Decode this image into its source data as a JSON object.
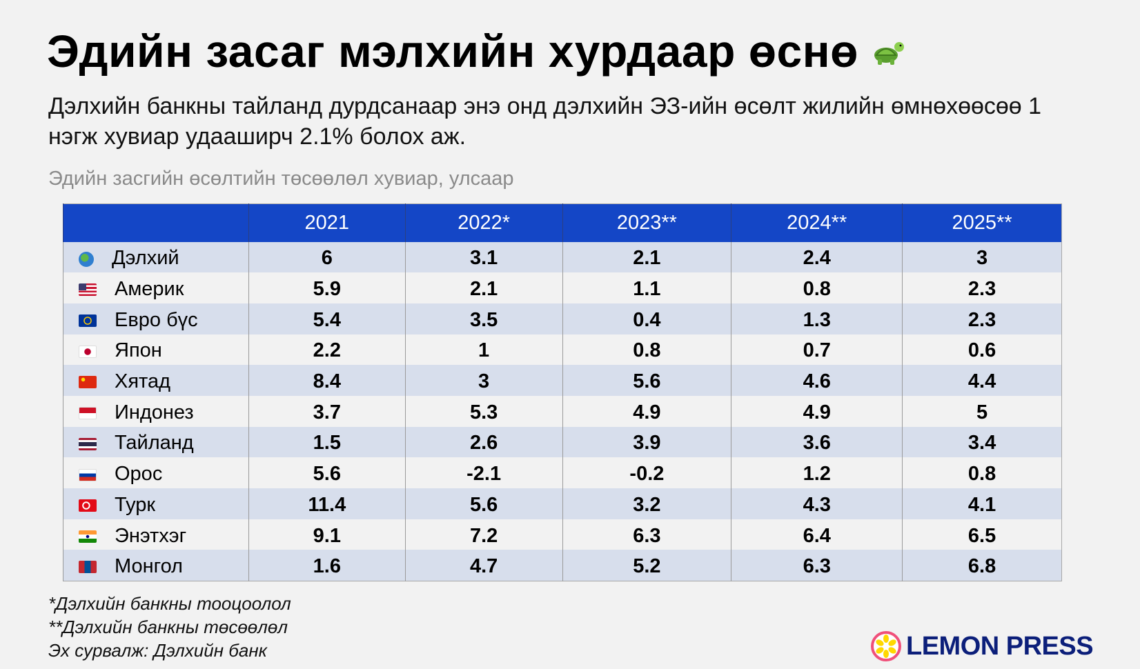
{
  "title": "Эдийн засаг мэлхийн хурдаар өснө",
  "title_icon": "turtle-icon",
  "subtitle": "Дэлхийн банкны тайланд дурдсанаар энэ онд дэлхийн ЭЗ-ийн өсөлт жилийн өмнөхөөсөө 1 нэгж хувиар удааширч 2.1% болох аж.",
  "caption": "Эдийн засгийн өсөлтийн төсөөлөл хувиар, улсаар",
  "colors": {
    "header": "#1446c6",
    "row_odd": "#d7deec",
    "row_even": "#f2f2f2",
    "logo": "#0c1f7a"
  },
  "chart_data": {
    "type": "table",
    "columns": [
      "",
      "2021",
      "2022*",
      "2023**",
      "2024**",
      "2025**"
    ],
    "rows": [
      {
        "icon": "globe-icon",
        "name": "Дэлхий",
        "values": [
          "6",
          "3.1",
          "2.1",
          "2.4",
          "3"
        ]
      },
      {
        "icon": "usa-flag-icon",
        "name": "Америк",
        "values": [
          "5.9",
          "2.1",
          "1.1",
          "0.8",
          "2.3"
        ]
      },
      {
        "icon": "eu-flag-icon",
        "name": "Евро бүс",
        "values": [
          "5.4",
          "3.5",
          "0.4",
          "1.3",
          "2.3"
        ]
      },
      {
        "icon": "japan-flag-icon",
        "name": "Япон",
        "values": [
          "2.2",
          "1",
          "0.8",
          "0.7",
          "0.6"
        ]
      },
      {
        "icon": "china-flag-icon",
        "name": "Хятад",
        "values": [
          "8.4",
          "3",
          "5.6",
          "4.6",
          "4.4"
        ]
      },
      {
        "icon": "indonesia-flag-icon",
        "name": "Индонез",
        "values": [
          "3.7",
          "5.3",
          "4.9",
          "4.9",
          "5"
        ]
      },
      {
        "icon": "thailand-flag-icon",
        "name": "Тайланд",
        "values": [
          "1.5",
          "2.6",
          "3.9",
          "3.6",
          "3.4"
        ]
      },
      {
        "icon": "russia-flag-icon",
        "name": "Орос",
        "values": [
          "5.6",
          "-2.1",
          "-0.2",
          "1.2",
          "0.8"
        ]
      },
      {
        "icon": "turkey-flag-icon",
        "name": "Турк",
        "values": [
          "11.4",
          "5.6",
          "3.2",
          "4.3",
          "4.1"
        ]
      },
      {
        "icon": "india-flag-icon",
        "name": "Энэтхэг",
        "values": [
          "9.1",
          "7.2",
          "6.3",
          "6.4",
          "6.5"
        ]
      },
      {
        "icon": "mongolia-flag-icon",
        "name": "Монгол",
        "values": [
          "1.6",
          "4.7",
          "5.2",
          "6.3",
          "6.8"
        ]
      }
    ]
  },
  "footnotes": [
    "*Дэлхийн банкны тооцоолол",
    "**Дэлхийн банкны төсөөлөл",
    "Эх сурвалж: Дэлхийн банк"
  ],
  "logo": {
    "text": "LEMON PRESS",
    "icon": "lemon-icon"
  }
}
